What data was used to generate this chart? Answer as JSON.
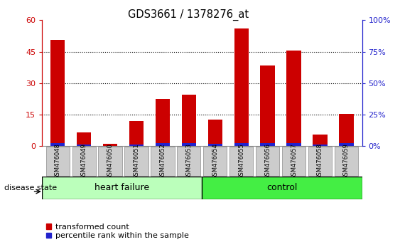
{
  "title": "GDS3661 / 1378276_at",
  "samples": [
    "GSM476048",
    "GSM476049",
    "GSM476050",
    "GSM476051",
    "GSM476052",
    "GSM476053",
    "GSM476054",
    "GSM476055",
    "GSM476056",
    "GSM476057",
    "GSM476058",
    "GSM476059"
  ],
  "transformed_count": [
    50.5,
    6.5,
    1.0,
    12.0,
    22.5,
    24.5,
    12.5,
    56.0,
    38.5,
    45.5,
    5.5,
    15.5
  ],
  "percentile_rank_scaled": [
    1.6,
    0.8,
    0.1,
    0.9,
    1.3,
    1.35,
    1.2,
    1.6,
    1.5,
    1.56,
    0.85,
    1.32
  ],
  "red_color": "#cc0000",
  "blue_color": "#2222cc",
  "left_ylim": [
    0,
    60
  ],
  "right_ylim": [
    0,
    100
  ],
  "left_yticks": [
    0,
    15,
    30,
    45,
    60
  ],
  "right_yticks": [
    0,
    25,
    50,
    75,
    100
  ],
  "right_yticklabels": [
    "0%",
    "25%",
    "50%",
    "75%",
    "100%"
  ],
  "heart_failure_color": "#bbffbb",
  "control_color": "#44ee44",
  "label_bg_color": "#cccccc",
  "disease_state_label": "disease state",
  "heart_failure_text": "heart failure",
  "control_text": "control",
  "legend_red_label": "transformed count",
  "legend_blue_label": "percentile rank within the sample",
  "bar_width": 0.55,
  "grid_color": "#555555",
  "spine_color": "#888888"
}
